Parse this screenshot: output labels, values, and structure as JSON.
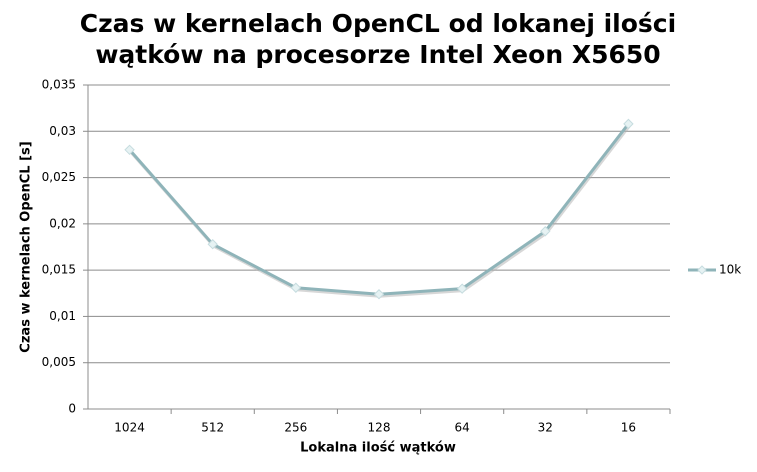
{
  "chart_data": {
    "type": "line",
    "title": "Czas w kernelach OpenCL od lokanej ilości wątków na procesorze Intel Xeon X5650",
    "x_label": "Lokalna ilość wątków",
    "y_label": "Czas w kernelach OpenCL [s]",
    "categories": [
      "1024",
      "512",
      "256",
      "128",
      "64",
      "32",
      "16"
    ],
    "series": [
      {
        "name": "10k",
        "color": "#8fb4b9",
        "values": [
          0.028,
          0.0178,
          0.0131,
          0.0124,
          0.013,
          0.0192,
          0.0308
        ]
      }
    ],
    "ylim": [
      0,
      0.035
    ],
    "yticks": [
      0,
      {
        "value": 0.005,
        "label": "0,005"
      },
      {
        "value": 0.01,
        "label": "0,01"
      },
      {
        "value": 0.015,
        "label": "0,015"
      },
      {
        "value": 0.02,
        "label": "0,02"
      },
      {
        "value": 0.025,
        "label": "0,025"
      },
      {
        "value": 0.03,
        "label": "0,03"
      },
      {
        "value": 0.035,
        "label": "0,035"
      }
    ],
    "grid": true,
    "legend": "right"
  }
}
